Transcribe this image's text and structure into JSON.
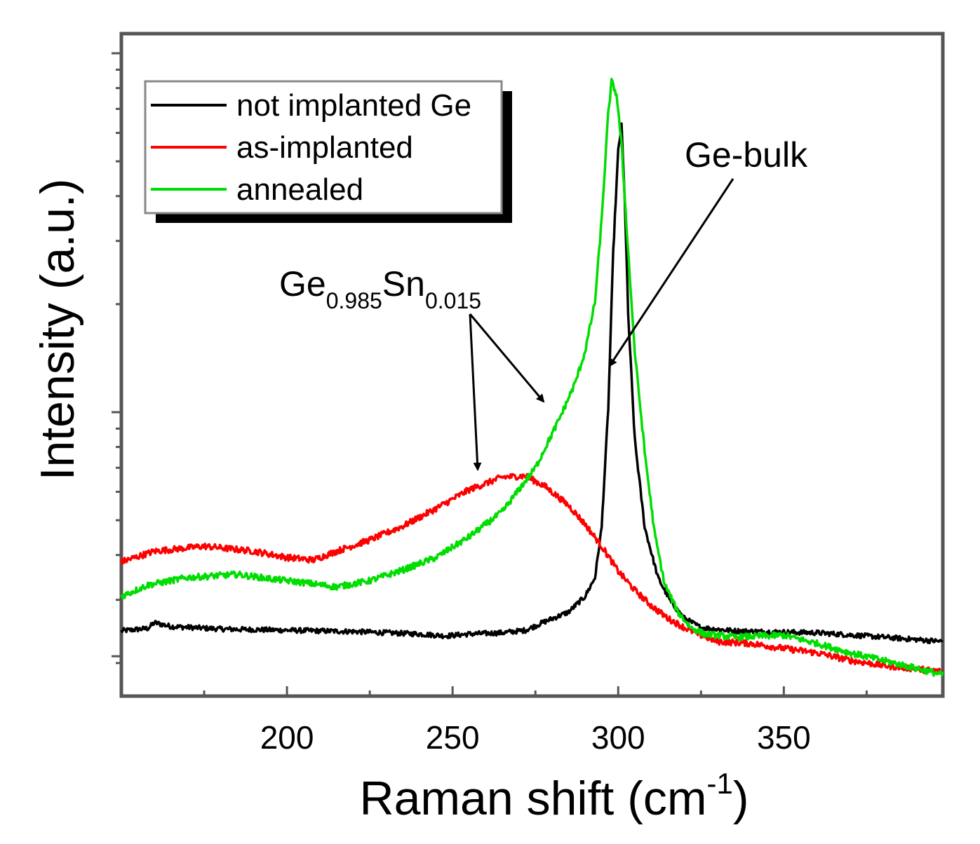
{
  "chart_data": {
    "type": "line",
    "xlabel": "Raman shift (cm",
    "xlabel_sup": "-1",
    "xlabel_close": ")",
    "ylabel": "Intensity (a.u.)",
    "xlim": [
      150,
      398
    ],
    "ylim": [
      0,
      1
    ],
    "x_tick_labels": [
      "200",
      "250",
      "300",
      "350"
    ],
    "x_ticks": [
      200,
      250,
      300,
      350
    ],
    "x_minor_ticks": [
      175,
      225,
      275,
      325,
      375
    ],
    "y_scale": "log",
    "legend_position": "top-left",
    "colors": {
      "black": "#000000",
      "red": "#ff0000",
      "green": "#00dd00"
    },
    "series": [
      {
        "name": "not implanted Ge",
        "color": "#000000",
        "points": [
          [
            150,
            0.095
          ],
          [
            158,
            0.099
          ],
          [
            160,
            0.108
          ],
          [
            165,
            0.102
          ],
          [
            180,
            0.098
          ],
          [
            200,
            0.096
          ],
          [
            220,
            0.094
          ],
          [
            240,
            0.09
          ],
          [
            248,
            0.087
          ],
          [
            255,
            0.09
          ],
          [
            265,
            0.092
          ],
          [
            272,
            0.096
          ],
          [
            278,
            0.11
          ],
          [
            285,
            0.125
          ],
          [
            290,
            0.15
          ],
          [
            293,
            0.18
          ],
          [
            295,
            0.26
          ],
          [
            297,
            0.45
          ],
          [
            298.5,
            0.7
          ],
          [
            300,
            0.86
          ],
          [
            301,
            0.9
          ],
          [
            302,
            0.78
          ],
          [
            303,
            0.6
          ],
          [
            305,
            0.4
          ],
          [
            308,
            0.26
          ],
          [
            312,
            0.18
          ],
          [
            316,
            0.14
          ],
          [
            320,
            0.115
          ],
          [
            325,
            0.1
          ],
          [
            335,
            0.095
          ],
          [
            350,
            0.093
          ],
          [
            360,
            0.092
          ],
          [
            380,
            0.085
          ],
          [
            398,
            0.078
          ]
        ],
        "noise": 0.004
      },
      {
        "name": "as-implanted",
        "color": "#ff0000",
        "points": [
          [
            150,
            0.205
          ],
          [
            160,
            0.222
          ],
          [
            175,
            0.23
          ],
          [
            190,
            0.222
          ],
          [
            200,
            0.212
          ],
          [
            208,
            0.208
          ],
          [
            215,
            0.222
          ],
          [
            225,
            0.24
          ],
          [
            235,
            0.262
          ],
          [
            245,
            0.29
          ],
          [
            255,
            0.32
          ],
          [
            265,
            0.34
          ],
          [
            272,
            0.342
          ],
          [
            278,
            0.325
          ],
          [
            285,
            0.295
          ],
          [
            290,
            0.265
          ],
          [
            295,
            0.23
          ],
          [
            300,
            0.19
          ],
          [
            305,
            0.16
          ],
          [
            310,
            0.135
          ],
          [
            315,
            0.115
          ],
          [
            320,
            0.1
          ],
          [
            325,
            0.088
          ],
          [
            330,
            0.078
          ],
          [
            340,
            0.075
          ],
          [
            350,
            0.067
          ],
          [
            360,
            0.06
          ],
          [
            370,
            0.048
          ],
          [
            380,
            0.04
          ],
          [
            398,
            0.03
          ]
        ],
        "noise": 0.005
      },
      {
        "name": "annealed",
        "color": "#00dd00",
        "points": [
          [
            150,
            0.15
          ],
          [
            158,
            0.168
          ],
          [
            170,
            0.18
          ],
          [
            185,
            0.185
          ],
          [
            195,
            0.178
          ],
          [
            205,
            0.172
          ],
          [
            215,
            0.165
          ],
          [
            225,
            0.175
          ],
          [
            235,
            0.192
          ],
          [
            245,
            0.212
          ],
          [
            255,
            0.245
          ],
          [
            265,
            0.285
          ],
          [
            275,
            0.355
          ],
          [
            282,
            0.43
          ],
          [
            287,
            0.49
          ],
          [
            290,
            0.54
          ],
          [
            293,
            0.62
          ],
          [
            295,
            0.75
          ],
          [
            297,
            0.92
          ],
          [
            298,
            0.97
          ],
          [
            299.5,
            0.95
          ],
          [
            301,
            0.87
          ],
          [
            303,
            0.7
          ],
          [
            305,
            0.54
          ],
          [
            308,
            0.38
          ],
          [
            311,
            0.25
          ],
          [
            314,
            0.17
          ],
          [
            318,
            0.125
          ],
          [
            322,
            0.1
          ],
          [
            326,
            0.09
          ],
          [
            335,
            0.085
          ],
          [
            350,
            0.088
          ],
          [
            360,
            0.075
          ],
          [
            370,
            0.06
          ],
          [
            380,
            0.048
          ],
          [
            398,
            0.025
          ]
        ],
        "noise": 0.005
      }
    ],
    "annotations": [
      {
        "label_parts": [
          "Ge",
          "0.985",
          "Sn",
          "0.015"
        ]
      },
      {
        "label": "Ge-bulk"
      }
    ]
  }
}
